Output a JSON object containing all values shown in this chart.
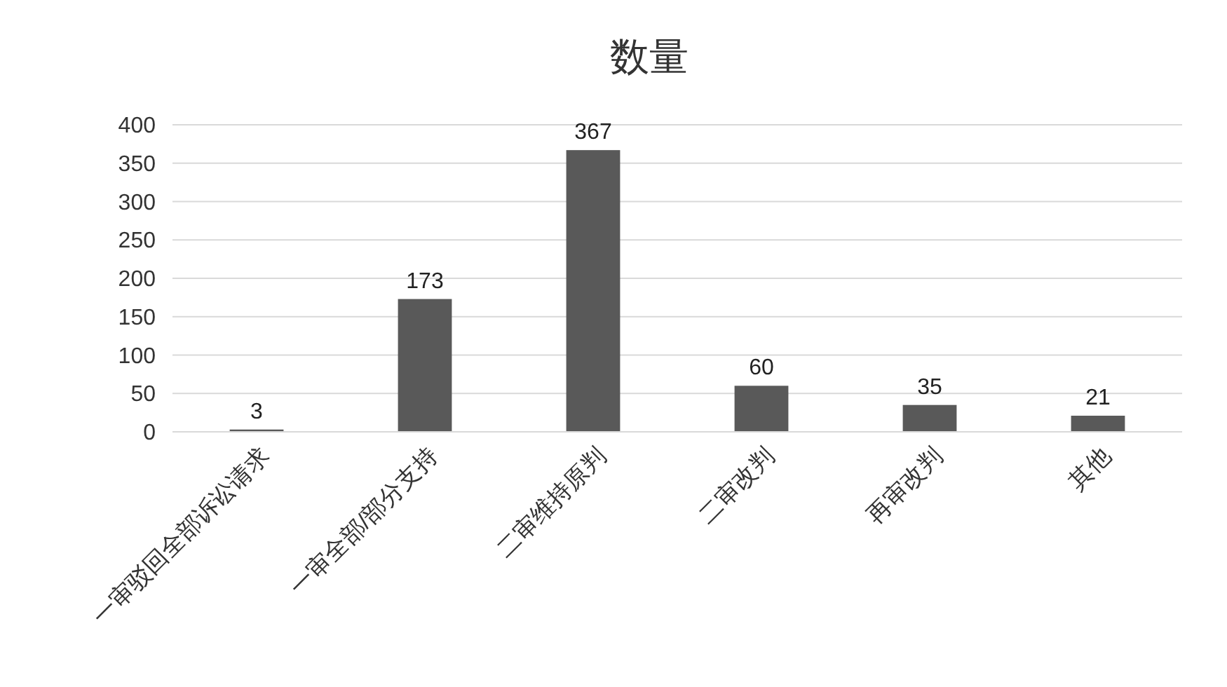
{
  "chart_data": {
    "type": "bar",
    "title": "数量",
    "categories": [
      "一审驳回全部诉讼请求",
      "一审全部/部分支持",
      "二审维持原判",
      "二审改判",
      "再审改判",
      "其他"
    ],
    "values": [
      3,
      173,
      367,
      60,
      35,
      21
    ],
    "color": "#595959",
    "ylim": [
      0,
      400
    ],
    "yticks": [
      0,
      50,
      100,
      150,
      200,
      250,
      300,
      350,
      400
    ],
    "grid": "y",
    "data_labels": true
  }
}
